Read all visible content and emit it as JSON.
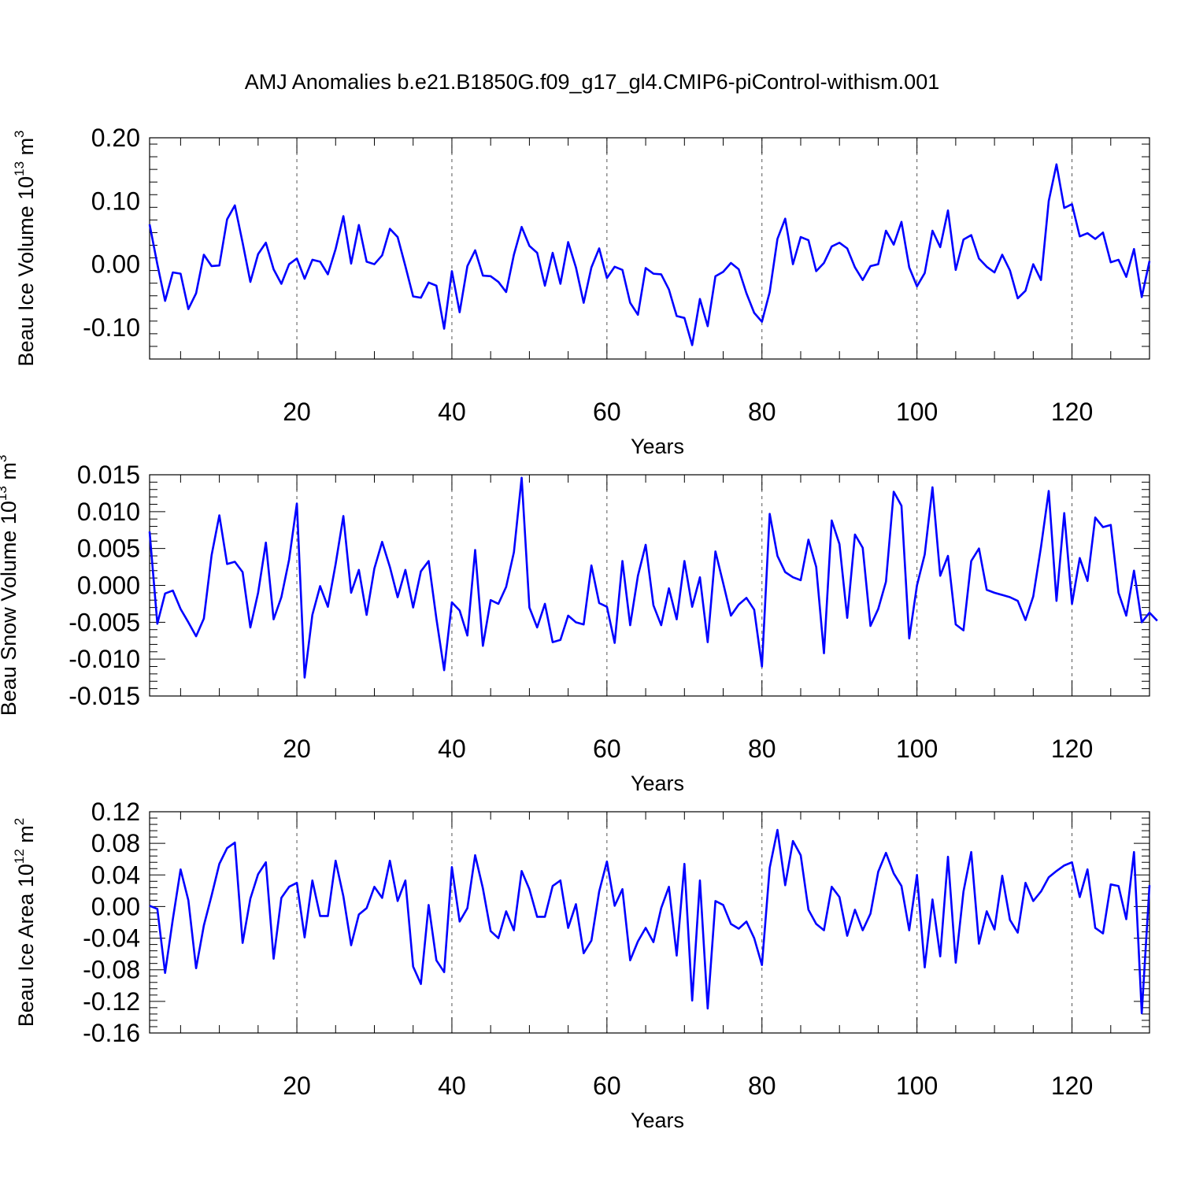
{
  "title": "AMJ Anomalies b.e21.B1850G.f09_g17_gl4.CMIP6-piControl-withism.001",
  "line_color": "#0000ff",
  "chart_data": [
    {
      "type": "line",
      "xlabel": "Years",
      "ylabel": {
        "main": "Beau Ice Volume 10",
        "exp": "13",
        "unit": " m",
        "unit_exp": "3"
      },
      "xlim": [
        1,
        130
      ],
      "ylim": [
        -0.15,
        0.2
      ],
      "x_ticks": [
        20,
        40,
        60,
        80,
        100,
        120
      ],
      "y_ticks": [
        -0.1,
        0.0,
        0.1,
        0.2
      ],
      "y_tick_labels": [
        "-0.10",
        "0.00",
        "0.10",
        "0.20"
      ],
      "grid": "vertical dashed at major x ticks",
      "series": [
        {
          "values": [
            0.063,
            0.0,
            -0.058,
            -0.013,
            -0.015,
            -0.071,
            -0.046,
            0.015,
            -0.003,
            -0.002,
            0.071,
            0.093,
            0.034,
            -0.028,
            0.016,
            0.034,
            -0.008,
            -0.031,
            0.0,
            0.009,
            -0.023,
            0.007,
            0.004,
            -0.016,
            0.024,
            0.076,
            0.001,
            0.062,
            0.004,
            0.0,
            0.014,
            0.056,
            0.043,
            -0.003,
            -0.051,
            -0.053,
            -0.029,
            -0.034,
            -0.102,
            -0.011,
            -0.076,
            -0.003,
            0.022,
            -0.018,
            -0.019,
            -0.028,
            -0.044,
            0.015,
            0.059,
            0.029,
            0.018,
            -0.034,
            0.018,
            -0.031,
            0.035,
            -0.005,
            -0.061,
            -0.005,
            0.025,
            -0.022,
            -0.004,
            -0.009,
            -0.061,
            -0.08,
            -0.006,
            -0.015,
            -0.016,
            -0.04,
            -0.082,
            -0.085,
            -0.128,
            -0.055,
            -0.098,
            -0.019,
            -0.012,
            0.002,
            -0.008,
            -0.046,
            -0.077,
            -0.091,
            -0.044,
            0.04,
            0.072,
            0.0,
            0.043,
            0.038,
            -0.011,
            0.002,
            0.028,
            0.034,
            0.025,
            -0.005,
            -0.025,
            -0.003,
            0.0,
            0.053,
            0.031,
            0.067,
            -0.005,
            -0.035,
            -0.014,
            0.053,
            0.027,
            0.085,
            -0.009,
            0.039,
            0.046,
            0.009,
            -0.004,
            -0.013,
            0.015,
            -0.01,
            -0.054,
            -0.042,
            0.0,
            -0.025,
            0.1,
            0.158,
            0.089,
            0.095,
            0.044,
            0.049,
            0.04,
            0.05,
            0.003,
            0.007,
            -0.02,
            0.024,
            -0.052,
            0.005
          ]
        }
      ]
    },
    {
      "type": "line",
      "xlabel": "Years",
      "ylabel": {
        "main": "Beau Snow Volume 10",
        "exp": "13",
        "unit": " m",
        "unit_exp": "3"
      },
      "xlim": [
        1,
        130
      ],
      "ylim": [
        -0.015,
        0.015
      ],
      "x_ticks": [
        20,
        40,
        60,
        80,
        100,
        120
      ],
      "y_ticks": [
        -0.015,
        -0.01,
        -0.005,
        0.0,
        0.005,
        0.01,
        0.015
      ],
      "y_tick_labels": [
        "-0.015",
        "-0.010",
        "-0.005",
        "0.000",
        "0.005",
        "0.010",
        "0.015"
      ],
      "grid": "vertical dashed at major x ticks",
      "series": [
        {
          "values": [
            0.0073,
            -0.0052,
            -0.0011,
            -0.0007,
            -0.0032,
            -0.005,
            -0.0069,
            -0.0045,
            0.0041,
            0.0095,
            0.0029,
            0.0032,
            0.0018,
            -0.0057,
            -0.001,
            0.0058,
            -0.0046,
            -0.0016,
            0.0035,
            0.0111,
            -0.0125,
            -0.004,
            -0.0001,
            -0.0029,
            0.0029,
            0.0094,
            -0.001,
            0.0021,
            -0.004,
            0.0023,
            0.0059,
            0.0025,
            -0.0016,
            0.0021,
            -0.003,
            0.0019,
            0.0033,
            -0.0045,
            -0.0115,
            -0.0023,
            -0.0034,
            -0.0068,
            0.0048,
            -0.0082,
            -0.002,
            -0.0025,
            -0.0002,
            0.0045,
            0.0146,
            -0.003,
            -0.0057,
            -0.0025,
            -0.0077,
            -0.0074,
            -0.0041,
            -0.005,
            -0.0053,
            0.0027,
            -0.0024,
            -0.0029,
            -0.0078,
            0.0033,
            -0.0054,
            0.0013,
            0.0055,
            -0.0027,
            -0.0054,
            -0.0004,
            -0.0046,
            0.0033,
            -0.0029,
            0.0011,
            -0.0077,
            0.0046,
            0.0003,
            -0.0041,
            -0.0026,
            -0.0017,
            -0.0033,
            -0.011,
            0.0097,
            0.004,
            0.0018,
            0.0011,
            0.0007,
            0.0062,
            0.0025,
            -0.0092,
            0.0088,
            0.0056,
            -0.0044,
            0.0069,
            0.0051,
            -0.0055,
            -0.0032,
            0.0005,
            0.0127,
            0.0108,
            -0.0072,
            0.0,
            0.0042,
            0.0133,
            0.0013,
            0.004,
            -0.0053,
            -0.0061,
            0.0033,
            0.005,
            -0.0006,
            -0.001,
            -0.0013,
            -0.0016,
            -0.0021,
            -0.0047,
            -0.0015,
            0.0052,
            0.0128,
            -0.0021,
            0.0098,
            -0.0025,
            0.0037,
            0.0006,
            0.0092,
            0.0079,
            0.0082,
            -0.001,
            -0.0041,
            0.002,
            -0.005,
            -0.0037,
            -0.0048
          ]
        }
      ]
    },
    {
      "type": "line",
      "xlabel": "Years",
      "ylabel": {
        "main": "Beau Ice Area 10",
        "exp": "12",
        "unit": " m",
        "unit_exp": "2"
      },
      "xlim": [
        1,
        130
      ],
      "ylim": [
        -0.16,
        0.12
      ],
      "x_ticks": [
        20,
        40,
        60,
        80,
        100,
        120
      ],
      "y_ticks": [
        -0.16,
        -0.12,
        -0.08,
        -0.04,
        0.0,
        0.04,
        0.08,
        0.12
      ],
      "y_tick_labels": [
        "-0.16",
        "-0.12",
        "-0.08",
        "-0.04",
        "0.00",
        "0.04",
        "0.08",
        "0.12"
      ],
      "grid": "vertical dashed at major x ticks",
      "series": [
        {
          "values": [
            0.001,
            -0.003,
            -0.084,
            -0.016,
            0.047,
            0.008,
            -0.078,
            -0.024,
            0.014,
            0.054,
            0.074,
            0.081,
            -0.046,
            0.01,
            0.041,
            0.056,
            -0.066,
            0.011,
            0.025,
            0.03,
            -0.039,
            0.033,
            -0.012,
            -0.012,
            0.058,
            0.013,
            -0.049,
            -0.01,
            -0.002,
            0.025,
            0.011,
            0.058,
            0.007,
            0.033,
            -0.076,
            -0.098,
            0.002,
            -0.068,
            -0.083,
            0.05,
            -0.019,
            -0.002,
            0.065,
            0.023,
            -0.031,
            -0.04,
            -0.006,
            -0.03,
            0.045,
            0.022,
            -0.013,
            -0.013,
            0.026,
            0.033,
            -0.027,
            0.003,
            -0.059,
            -0.043,
            0.019,
            0.057,
            0.001,
            0.022,
            -0.068,
            -0.044,
            -0.027,
            -0.045,
            -0.002,
            0.025,
            -0.062,
            0.054,
            -0.119,
            0.033,
            -0.129,
            0.007,
            0.002,
            -0.022,
            -0.028,
            -0.019,
            -0.04,
            -0.074,
            0.049,
            0.097,
            0.027,
            0.083,
            0.065,
            -0.004,
            -0.022,
            -0.03,
            0.025,
            0.012,
            -0.037,
            -0.004,
            -0.03,
            -0.009,
            0.044,
            0.068,
            0.042,
            0.026,
            -0.03,
            0.04,
            -0.077,
            0.009,
            -0.063,
            0.063,
            -0.071,
            0.019,
            0.069,
            -0.047,
            -0.006,
            -0.029,
            0.039,
            -0.017,
            -0.033,
            0.03,
            0.007,
            0.019,
            0.037,
            0.045,
            0.052,
            0.056,
            0.012,
            0.047,
            -0.027,
            -0.034,
            0.028,
            0.026,
            -0.016,
            0.069,
            -0.135,
            0.027
          ]
        }
      ]
    }
  ]
}
